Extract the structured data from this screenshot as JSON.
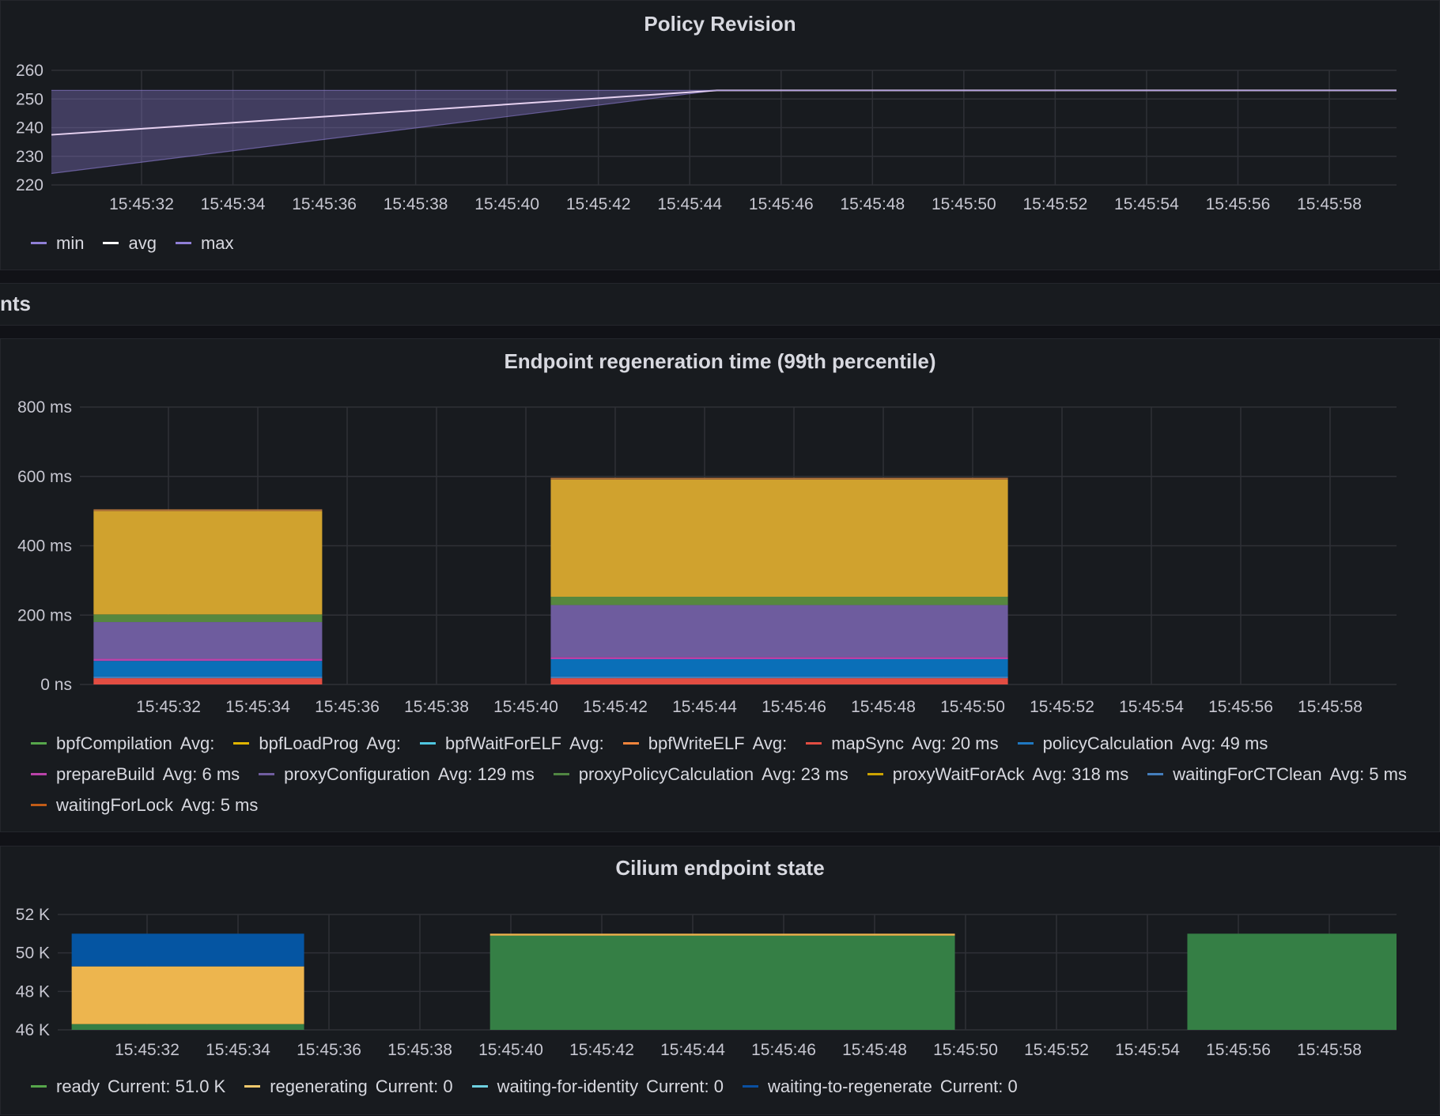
{
  "row_header": "nts",
  "chart_data": [
    {
      "type": "area",
      "title": "Policy Revision",
      "ylim": [
        220,
        260
      ],
      "yticks": [
        "260",
        "250",
        "240",
        "230",
        "220"
      ],
      "yvals": [
        260,
        250,
        240,
        230,
        220
      ],
      "xticks": [
        "15:45:32",
        "15:45:34",
        "15:45:36",
        "15:45:38",
        "15:45:40",
        "15:45:42",
        "15:45:44",
        "15:45:46",
        "15:45:48",
        "15:45:50",
        "15:45:52",
        "15:45:54",
        "15:45:56",
        "15:45:58"
      ],
      "series": [
        {
          "name": "min",
          "color": "#8f7fd6",
          "x": [
            "15:45:30.8",
            "15:45:45",
            "15:45:59.5"
          ],
          "values": [
            224,
            253,
            253
          ]
        },
        {
          "name": "avg",
          "color": "#e6d1f0",
          "x": [
            "15:45:30.8",
            "15:45:45",
            "15:45:59.5"
          ],
          "values": [
            237.5,
            253,
            253
          ]
        },
        {
          "name": "max",
          "color": "#8f7fd6",
          "x": [
            "15:45:30.8",
            "15:45:45",
            "15:45:59.5"
          ],
          "values": [
            253,
            253,
            253
          ]
        }
      ],
      "legend": [
        {
          "name": "min",
          "color": "#8f7fd6"
        },
        {
          "name": "avg",
          "color": "#ffffff"
        },
        {
          "name": "max",
          "color": "#8f7fd6"
        }
      ]
    },
    {
      "type": "bar",
      "stacked": true,
      "title": "Endpoint regeneration time (99th percentile)",
      "ylim": [
        0,
        800
      ],
      "yticks": [
        "800 ms",
        "600 ms",
        "400 ms",
        "200 ms",
        "0 ns"
      ],
      "yvals": [
        800,
        600,
        400,
        200,
        0
      ],
      "xticks": [
        "15:45:32",
        "15:45:34",
        "15:45:36",
        "15:45:38",
        "15:45:40",
        "15:45:42",
        "15:45:44",
        "15:45:46",
        "15:45:48",
        "15:45:50",
        "15:45:52",
        "15:45:54",
        "15:45:56",
        "15:45:58"
      ],
      "bars": [
        {
          "x_start": "15:45:31",
          "x_end": "15:45:36",
          "segments": [
            {
              "name": "mapSync",
              "value": 18
            },
            {
              "name": "waitingForCTClean",
              "value": 5
            },
            {
              "name": "policyCalculation",
              "value": 45
            },
            {
              "name": "prepareBuild",
              "value": 6
            },
            {
              "name": "proxyConfiguration",
              "value": 106
            },
            {
              "name": "proxyPolicyCalculation",
              "value": 22
            },
            {
              "name": "proxyWaitForAck",
              "value": 298
            },
            {
              "name": "waitingForLock",
              "value": 5
            }
          ]
        },
        {
          "x_start": "15:45:41",
          "x_end": "15:45:51",
          "segments": [
            {
              "name": "mapSync",
              "value": 18
            },
            {
              "name": "waitingForCTClean",
              "value": 5
            },
            {
              "name": "policyCalculation",
              "value": 50
            },
            {
              "name": "prepareBuild",
              "value": 6
            },
            {
              "name": "proxyConfiguration",
              "value": 150
            },
            {
              "name": "proxyPolicyCalculation",
              "value": 24
            },
            {
              "name": "proxyWaitForAck",
              "value": 338
            },
            {
              "name": "waitingForLock",
              "value": 5
            }
          ]
        }
      ],
      "legend": [
        {
          "name": "bpfCompilation",
          "stat": "Avg:",
          "color": "#56a64b"
        },
        {
          "name": "bpfLoadProg",
          "stat": "Avg:",
          "color": "#e0b400"
        },
        {
          "name": "bpfWaitForELF",
          "stat": "Avg:",
          "color": "#4fc6e0"
        },
        {
          "name": "bpfWriteELF",
          "stat": "Avg:",
          "color": "#ef843c"
        },
        {
          "name": "mapSync",
          "stat": "Avg: 20 ms",
          "color": "#e24d42"
        },
        {
          "name": "policyCalculation",
          "stat": "Avg: 49 ms",
          "color": "#1f78c1"
        },
        {
          "name": "prepareBuild",
          "stat": "Avg: 6 ms",
          "color": "#ba43a9"
        },
        {
          "name": "proxyConfiguration",
          "stat": "Avg: 129 ms",
          "color": "#705da0"
        },
        {
          "name": "proxyPolicyCalculation",
          "stat": "Avg: 23 ms",
          "color": "#508642"
        },
        {
          "name": "proxyWaitForAck",
          "stat": "Avg: 318 ms",
          "color": "#cca300"
        },
        {
          "name": "waitingForCTClean",
          "stat": "Avg: 5 ms",
          "color": "#447ebc"
        },
        {
          "name": "waitingForLock",
          "stat": "Avg: 5 ms",
          "color": "#c15c17"
        }
      ],
      "colors": {
        "mapSync": "#e24d42",
        "waitingForCTClean": "#447ebc",
        "policyCalculation": "#0a6fb8",
        "prepareBuild": "#ba43a9",
        "proxyConfiguration": "#6e5c9e",
        "proxyPolicyCalculation": "#56873f",
        "proxyWaitForAck": "#d0a22e",
        "waitingForLock": "#b2733a"
      }
    },
    {
      "type": "bar",
      "stacked": true,
      "title": "Cilium endpoint state",
      "ylim": [
        46000,
        52000
      ],
      "yticks": [
        "52 K",
        "50 K",
        "48 K",
        "46 K"
      ],
      "yvals": [
        52000,
        50000,
        48000,
        46000
      ],
      "xticks": [
        "15:45:32",
        "15:45:34",
        "15:45:36",
        "15:45:38",
        "15:45:40",
        "15:45:42",
        "15:45:44",
        "15:45:46",
        "15:45:48",
        "15:45:50",
        "15:45:52",
        "15:45:54",
        "15:45:56",
        "15:45:58"
      ],
      "bars": [
        {
          "x_start": "15:45:31",
          "x_end": "15:45:36",
          "segments": [
            {
              "name": "ready",
              "value": 46300
            },
            {
              "name": "regenerating",
              "value": 3000
            },
            {
              "name": "waiting-to-regenerate",
              "value": 1700
            }
          ]
        },
        {
          "x_start": "15:45:40",
          "x_end": "15:45:50",
          "segments": [
            {
              "name": "ready",
              "value": 50900
            },
            {
              "name": "regenerating",
              "value": 100
            }
          ]
        },
        {
          "x_start": "15:45:55",
          "x_end": "15:45:59.5",
          "segments": [
            {
              "name": "ready",
              "value": 51000
            }
          ]
        }
      ],
      "legend": [
        {
          "name": "ready",
          "stat": "Current: 51.0 K",
          "color": "#56a64b"
        },
        {
          "name": "regenerating",
          "stat": "Current: 0",
          "color": "#f2c96d"
        },
        {
          "name": "waiting-for-identity",
          "stat": "Current: 0",
          "color": "#6ed0e0"
        },
        {
          "name": "waiting-to-regenerate",
          "stat": "Current: 0",
          "color": "#0a50a1"
        }
      ],
      "colors": {
        "ready": "#357f45",
        "regenerating": "#edb54e",
        "waiting-to-regenerate": "#0555a2"
      }
    }
  ]
}
